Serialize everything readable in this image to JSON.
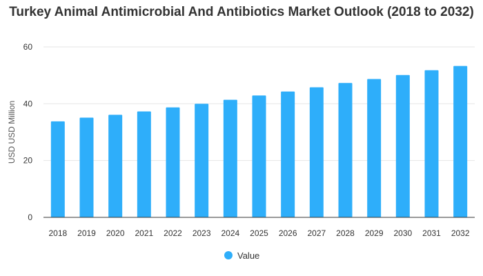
{
  "chart_data": {
    "type": "bar",
    "title": "Turkey Animal Antimicrobial And Antibiotics Market Outlook (2018 to 2032)",
    "xlabel": "",
    "ylabel": "USD USD Million",
    "categories": [
      "2018",
      "2019",
      "2020",
      "2021",
      "2022",
      "2023",
      "2024",
      "2025",
      "2026",
      "2027",
      "2028",
      "2029",
      "2030",
      "2031",
      "2032"
    ],
    "series": [
      {
        "name": "Value",
        "values": [
          33.8,
          35.1,
          36.1,
          37.3,
          38.7,
          40.0,
          41.4,
          42.9,
          44.3,
          45.8,
          47.3,
          48.7,
          50.1,
          51.8,
          53.3
        ]
      }
    ],
    "ylim": [
      0,
      60
    ],
    "yticks": [
      0,
      20,
      40,
      60
    ],
    "grid": true,
    "legend": "bottom-center",
    "bar_color": "#2eaefa"
  }
}
